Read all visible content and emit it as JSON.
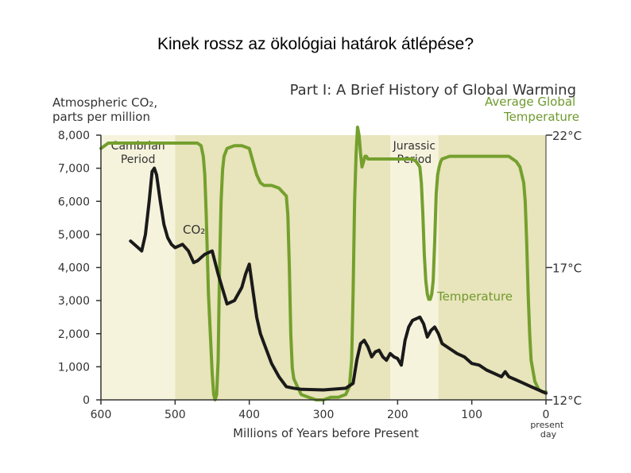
{
  "slide": {
    "title": "Kinek rossz az ökológiai határok átlépése?"
  },
  "chart_data": {
    "type": "line",
    "title": "Part I: A Brief History of Global Warming",
    "xlabel": "Millions of Years before Present",
    "ylabel_left": "Atmospheric CO₂, parts per million",
    "ylabel_right": "Average Global Temperature",
    "x_reversed": true,
    "xlim": [
      600,
      0
    ],
    "ylim_left": [
      0,
      8000
    ],
    "ylim_right": [
      12,
      22
    ],
    "x_ticks": [
      {
        "value": 600,
        "label": "600"
      },
      {
        "value": 500,
        "label": "500"
      },
      {
        "value": 400,
        "label": "400"
      },
      {
        "value": 300,
        "label": "300"
      },
      {
        "value": 200,
        "label": "200"
      },
      {
        "value": 100,
        "label": "100"
      },
      {
        "value": 0,
        "label": "0"
      }
    ],
    "x_end_label": [
      "present",
      "day"
    ],
    "y_left_ticks": [
      {
        "value": 0,
        "label": "0"
      },
      {
        "value": 1000,
        "label": "1,000"
      },
      {
        "value": 2000,
        "label": "2,000"
      },
      {
        "value": 3000,
        "label": "3,000"
      },
      {
        "value": 4000,
        "label": "4,000"
      },
      {
        "value": 5000,
        "label": "5,000"
      },
      {
        "value": 6000,
        "label": "6,000"
      },
      {
        "value": 7000,
        "label": "7,000"
      },
      {
        "value": 8000,
        "label": "8,000"
      }
    ],
    "y_right_ticks": [
      {
        "value": 12,
        "label": "12°C"
      },
      {
        "value": 17,
        "label": "17°C"
      },
      {
        "value": 22,
        "label": "22°C"
      }
    ],
    "period_bands": [
      {
        "label": "Cambrian Period",
        "x_start": 600,
        "x_end": 500,
        "shade": "light"
      },
      {
        "label": "",
        "x_start": 500,
        "x_end": 210,
        "shade": "dark"
      },
      {
        "label": "Jurassic Period",
        "x_start": 210,
        "x_end": 145,
        "shade": "light"
      },
      {
        "label": "",
        "x_start": 145,
        "x_end": 0,
        "shade": "dark"
      }
    ],
    "series": [
      {
        "name": "CO₂",
        "axis": "left",
        "color": "#1a1a1a",
        "x": [
          560,
          550,
          545,
          540,
          535,
          531,
          528,
          525,
          520,
          515,
          510,
          505,
          500,
          495,
          490,
          482,
          475,
          470,
          465,
          460,
          450,
          442,
          430,
          420,
          410,
          405,
          400,
          395,
          390,
          385,
          380,
          375,
          370,
          360,
          350,
          340,
          330,
          300,
          270,
          260,
          255,
          250,
          245,
          240,
          235,
          230,
          225,
          220,
          215,
          210,
          205,
          200,
          195,
          190,
          185,
          180,
          170,
          165,
          160,
          155,
          150,
          145,
          140,
          130,
          120,
          110,
          100,
          90,
          80,
          70,
          60,
          55,
          50,
          40,
          30,
          20,
          10,
          5,
          0
        ],
        "values": [
          4800,
          4600,
          4500,
          5000,
          6000,
          6900,
          7000,
          6800,
          6000,
          5300,
          4900,
          4700,
          4600,
          4650,
          4700,
          4500,
          4150,
          4200,
          4300,
          4400,
          4500,
          3800,
          2900,
          3000,
          3400,
          3800,
          4100,
          3300,
          2500,
          2000,
          1700,
          1400,
          1100,
          700,
          400,
          350,
          320,
          300,
          350,
          500,
          1200,
          1700,
          1800,
          1600,
          1300,
          1450,
          1500,
          1300,
          1200,
          1400,
          1300,
          1250,
          1050,
          1800,
          2200,
          2400,
          2500,
          2300,
          1900,
          2100,
          2200,
          2000,
          1700,
          1550,
          1400,
          1300,
          1100,
          1050,
          900,
          800,
          700,
          850,
          700,
          600,
          500,
          400,
          300,
          250,
          200
        ]
      },
      {
        "name": "Temperature",
        "axis": "right",
        "color": "#74a02e",
        "x": [
          600,
          590,
          580,
          560,
          540,
          520,
          500,
          480,
          470,
          465,
          462,
          460,
          458,
          455,
          450,
          448,
          446,
          444,
          442,
          440,
          438,
          436,
          434,
          430,
          420,
          410,
          400,
          395,
          390,
          385,
          380,
          370,
          360,
          350,
          348,
          346,
          344,
          342,
          340,
          335,
          330,
          320,
          310,
          300,
          290,
          280,
          270,
          265,
          262,
          260,
          258,
          256,
          254,
          252,
          250,
          248,
          246,
          244,
          242,
          240,
          230,
          220,
          210,
          200,
          190,
          180,
          175,
          170,
          168,
          166,
          164,
          162,
          160,
          158,
          156,
          154,
          152,
          150,
          148,
          146,
          144,
          142,
          140,
          130,
          120,
          110,
          100,
          90,
          80,
          70,
          60,
          50,
          40,
          35,
          30,
          28,
          26,
          24,
          22,
          20,
          15,
          10,
          5,
          0
        ],
        "values": [
          21.5,
          21.7,
          21.7,
          21.7,
          21.7,
          21.7,
          21.7,
          21.7,
          21.7,
          21.6,
          21.2,
          20.5,
          19.0,
          16.0,
          13.0,
          12.2,
          12.0,
          12.2,
          13.5,
          17.0,
          19.5,
          20.7,
          21.2,
          21.5,
          21.6,
          21.6,
          21.5,
          21.0,
          20.5,
          20.2,
          20.1,
          20.1,
          20.0,
          19.7,
          19.0,
          17.0,
          14.5,
          13.2,
          12.8,
          12.5,
          12.2,
          12.1,
          12.0,
          12.0,
          12.1,
          12.1,
          12.2,
          12.5,
          13.5,
          16.0,
          19.5,
          21.3,
          22.3,
          22.0,
          21.3,
          20.8,
          21.0,
          21.2,
          21.2,
          21.1,
          21.1,
          21.1,
          21.1,
          21.1,
          21.1,
          21.1,
          21.0,
          20.8,
          20.2,
          19.0,
          17.5,
          16.5,
          16.0,
          15.8,
          15.8,
          16.0,
          16.5,
          18.0,
          19.8,
          20.5,
          20.8,
          21.0,
          21.1,
          21.2,
          21.2,
          21.2,
          21.2,
          21.2,
          21.2,
          21.2,
          21.2,
          21.2,
          21.0,
          20.8,
          20.2,
          19.5,
          18.0,
          16.0,
          14.5,
          13.5,
          12.7,
          12.4,
          12.3,
          12.3
        ]
      }
    ]
  }
}
